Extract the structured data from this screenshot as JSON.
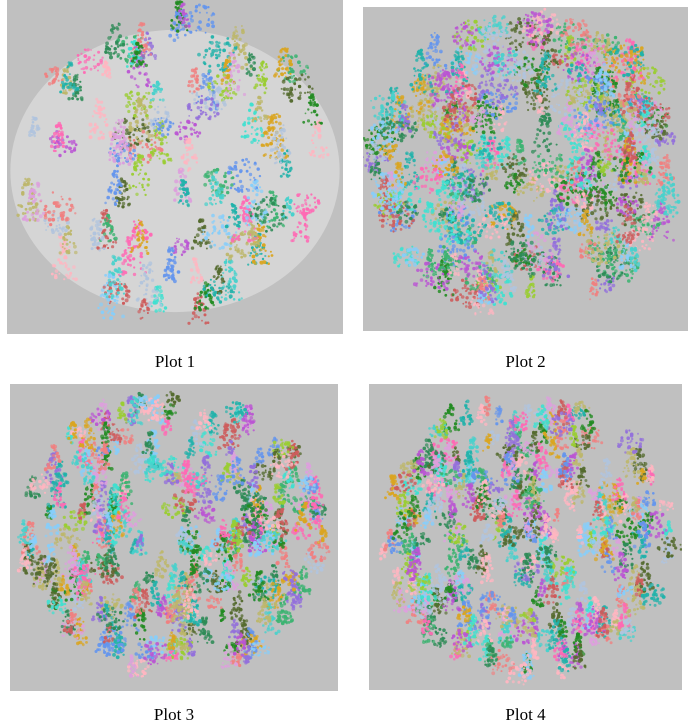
{
  "figure": {
    "panels": [
      {
        "id": "plot-1",
        "caption": "Plot 1",
        "density": 0.25,
        "seed": 11
      },
      {
        "id": "plot-2",
        "caption": "Plot 2",
        "density": 0.8,
        "seed": 23
      },
      {
        "id": "plot-3",
        "caption": "Plot 3",
        "density": 1.0,
        "seed": 37
      },
      {
        "id": "plot-4",
        "caption": "Plot 4",
        "density": 1.0,
        "seed": 53
      }
    ],
    "colors": {
      "background": "#c0c0c0",
      "ground_points": "#d8d8d8",
      "palette": [
        "#2e8b57",
        "#3cb371",
        "#20b2aa",
        "#48d1cc",
        "#87cefa",
        "#6495ed",
        "#9370db",
        "#ba55d3",
        "#ff69b4",
        "#ffb6c1",
        "#f08080",
        "#cd5c5c",
        "#daa520",
        "#bdb76b",
        "#9acd32",
        "#556b2f",
        "#228b22",
        "#40e0d0",
        "#dda0dd",
        "#b0c4de"
      ]
    }
  }
}
